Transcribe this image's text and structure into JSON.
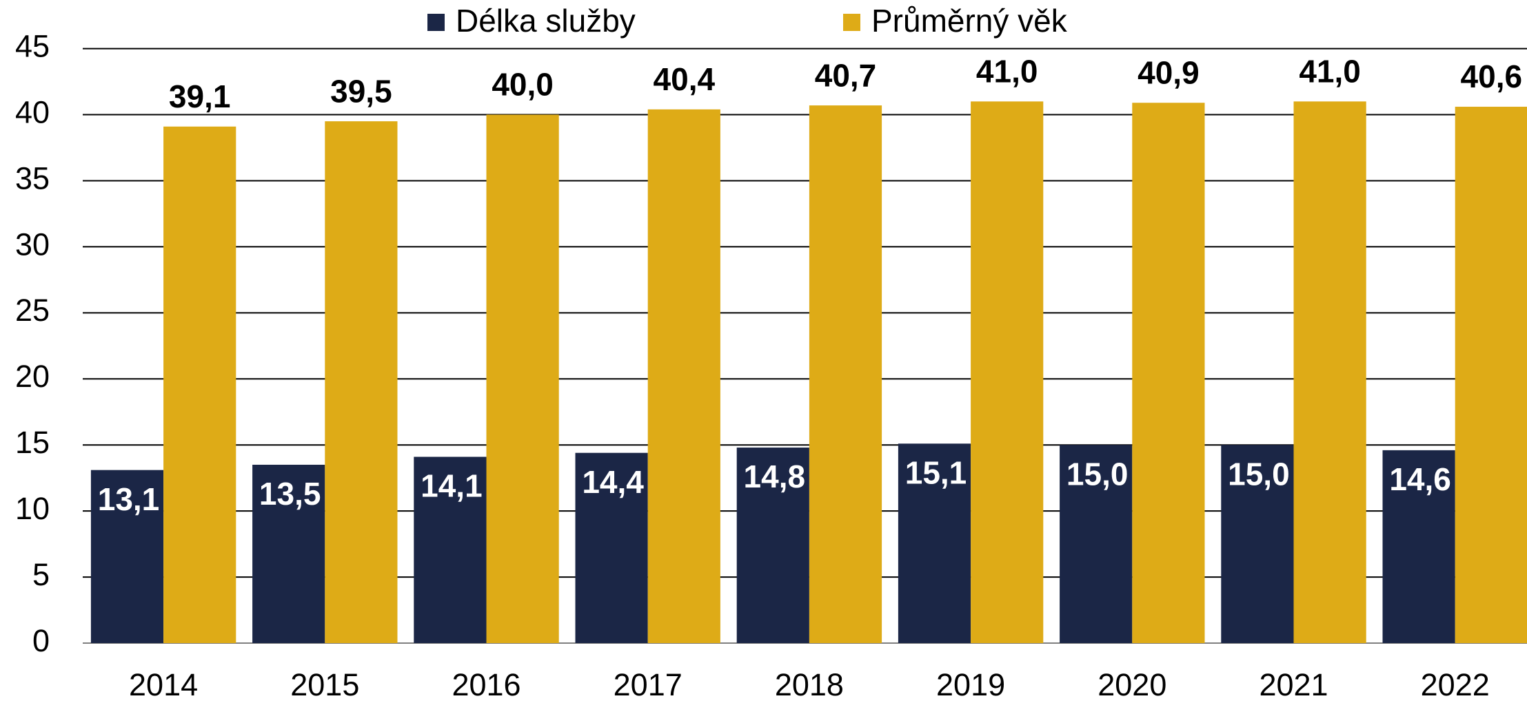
{
  "chart_data": {
    "type": "bar",
    "categories": [
      "2014",
      "2015",
      "2016",
      "2017",
      "2018",
      "2019",
      "2020",
      "2021",
      "2022"
    ],
    "series": [
      {
        "name": "Délka služby",
        "color": "#1b2646",
        "values": [
          13.1,
          13.5,
          14.1,
          14.4,
          14.8,
          15.1,
          15.0,
          15.0,
          14.6
        ],
        "value_labels": [
          "13,1",
          "13,5",
          "14,1",
          "14,4",
          "14,8",
          "15,1",
          "15,0",
          "15,0",
          "14,6"
        ]
      },
      {
        "name": "Průměrný věk",
        "color": "#deab17",
        "values": [
          39.1,
          39.5,
          40.0,
          40.4,
          40.7,
          41.0,
          40.9,
          41.0,
          40.6
        ],
        "value_labels": [
          "39,1",
          "39,5",
          "40,0",
          "40,4",
          "40,7",
          "41,0",
          "40,9",
          "41,0",
          "40,6"
        ]
      }
    ],
    "ylim": [
      0,
      45
    ],
    "yticks": [
      0,
      5,
      10,
      15,
      20,
      25,
      30,
      35,
      40,
      45
    ],
    "grid": true,
    "legend": "top"
  }
}
